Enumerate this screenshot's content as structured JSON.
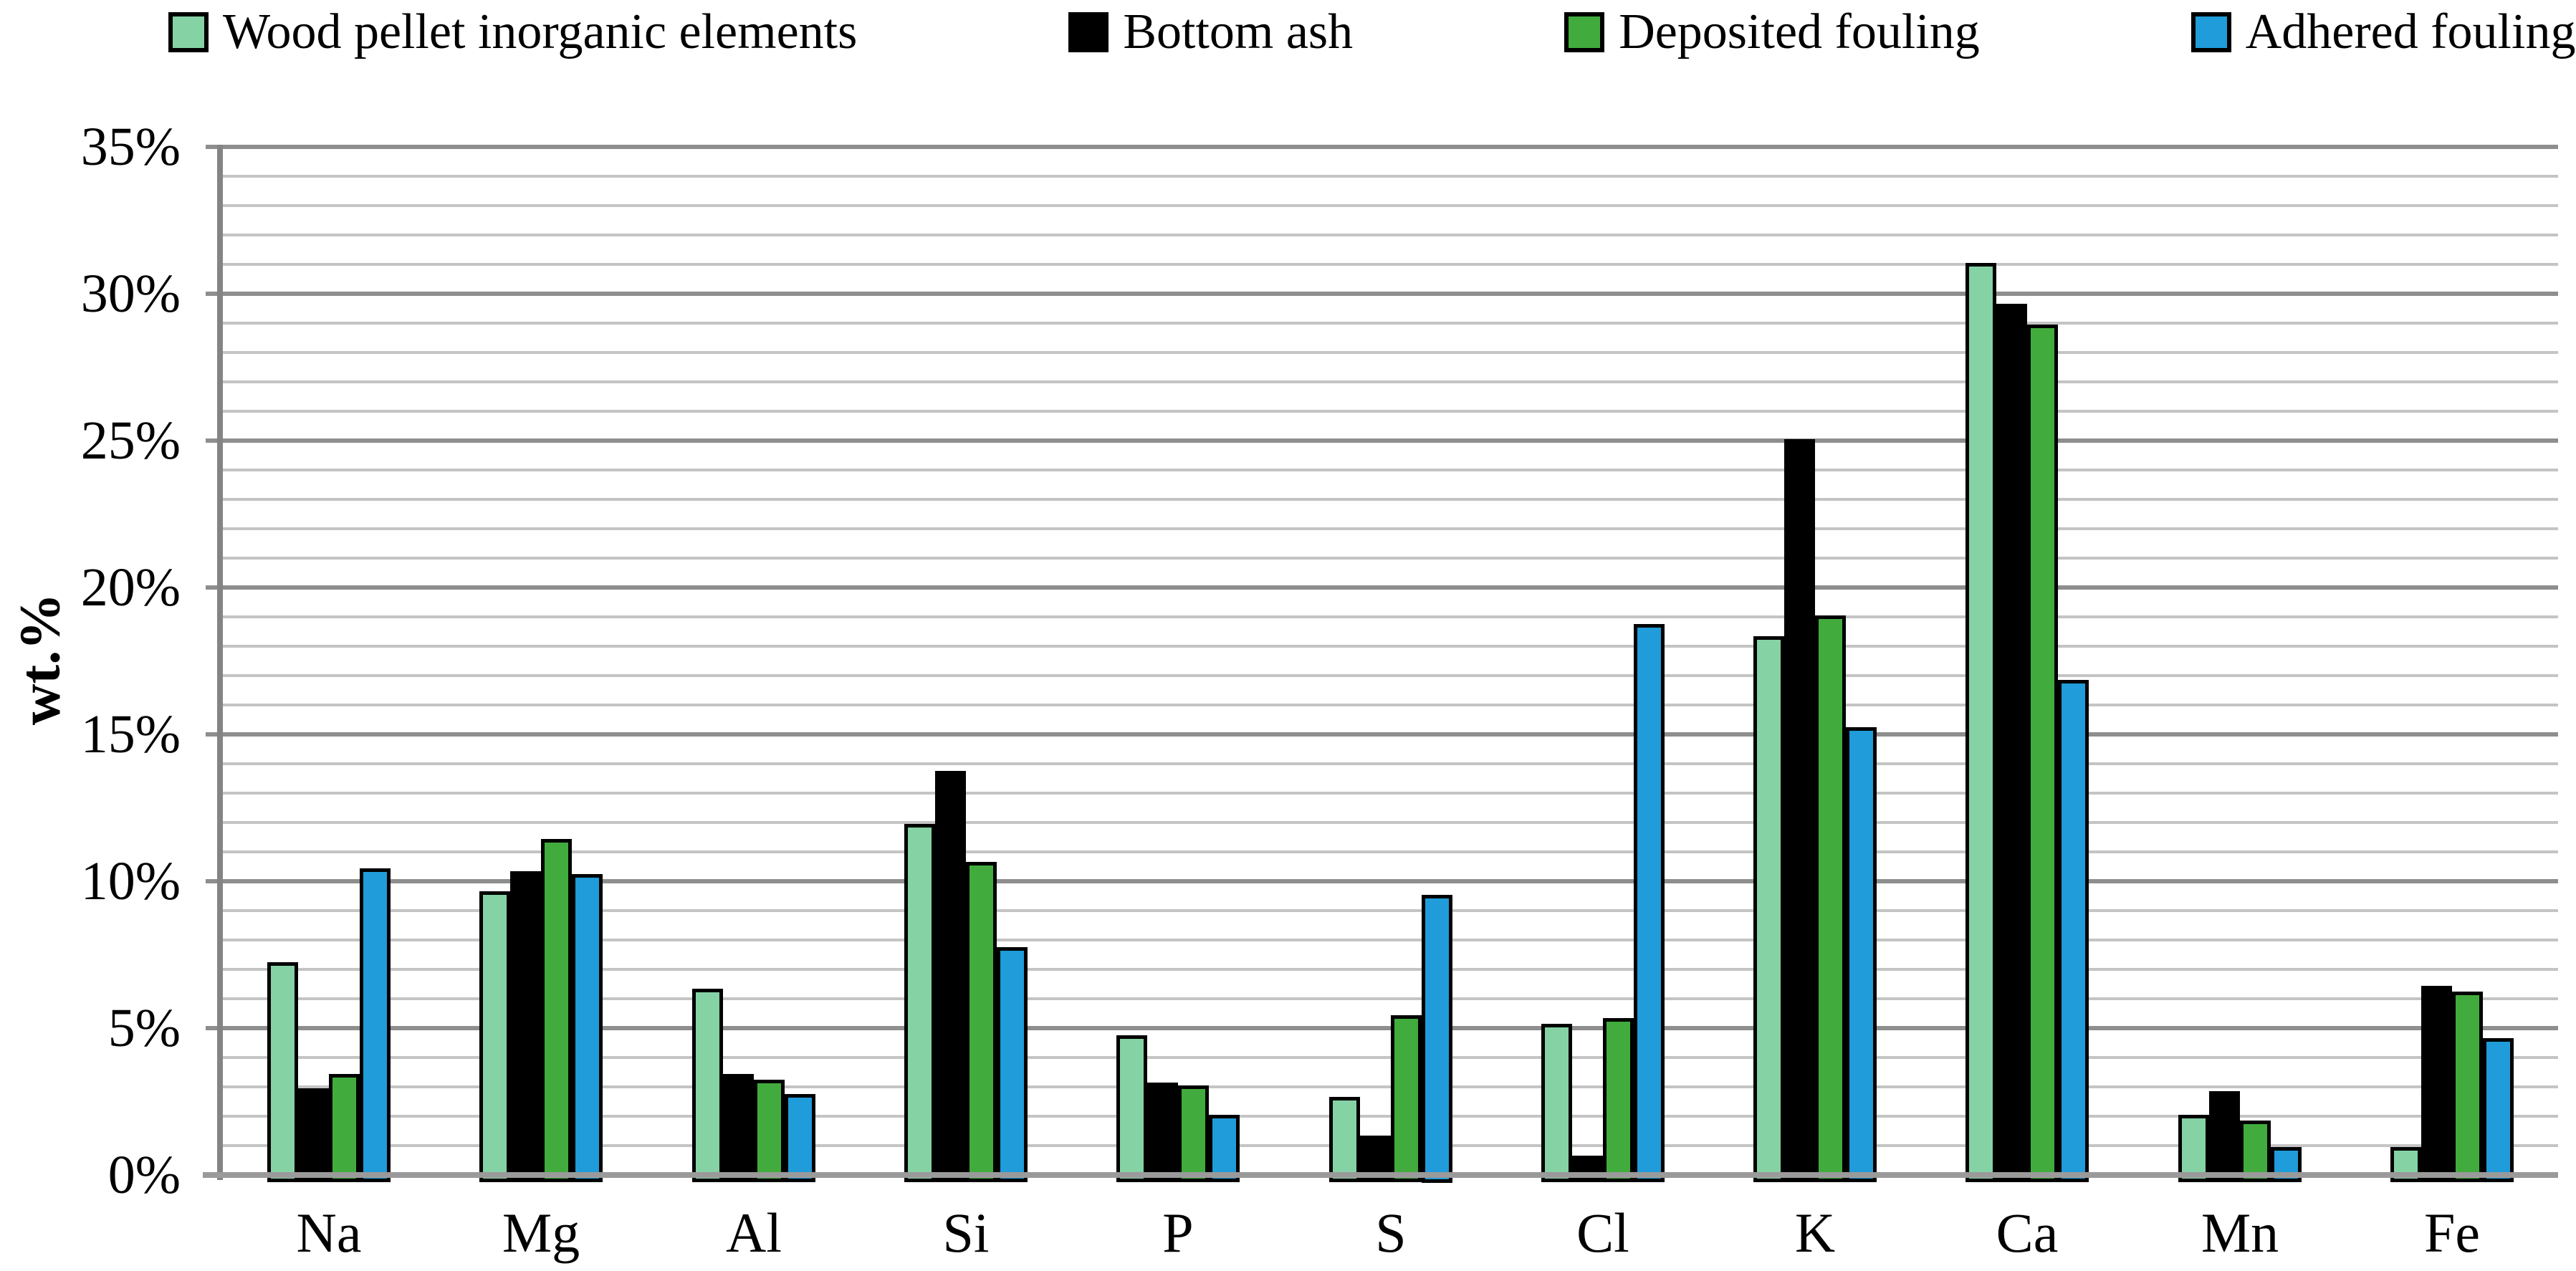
{
  "chart_data": {
    "type": "bar",
    "title": "",
    "xlabel": "",
    "ylabel": "wt.%",
    "ylim": [
      0,
      35
    ],
    "ytick_major_step": 5,
    "ytick_minor_step": 1,
    "ytick_label_suffix": "%",
    "grid": "horizontal, minor every 1%, major every 5%",
    "legend_position": "top",
    "categories": [
      "Na",
      "Mg",
      "Al",
      "Si",
      "P",
      "S",
      "Cl",
      "K",
      "Ca",
      "Mn",
      "Fe"
    ],
    "series": [
      {
        "name": "Wood pellet inorganic elements",
        "color": "#85d2a5",
        "values": [
          7.2,
          9.6,
          6.3,
          11.9,
          4.7,
          2.6,
          5.1,
          18.3,
          31.0,
          2.0,
          0.9
        ]
      },
      {
        "name": "Bottom ash",
        "color": "#000000",
        "values": [
          2.9,
          10.3,
          3.4,
          13.7,
          3.1,
          1.3,
          0.6,
          25.0,
          29.6,
          2.8,
          6.4
        ]
      },
      {
        "name": "Deposited fouling",
        "color": "#41ac3d",
        "values": [
          3.4,
          11.4,
          3.2,
          10.6,
          3.0,
          5.4,
          5.3,
          19.0,
          28.9,
          1.8,
          6.2
        ]
      },
      {
        "name": "Adhered fouling",
        "color": "#1f9cd9",
        "values": [
          10.4,
          10.2,
          2.7,
          7.7,
          2.0,
          9.5,
          18.7,
          15.2,
          16.8,
          0.9,
          4.6
        ]
      }
    ],
    "colors": {
      "minor_gridline": "#c4c4c4",
      "major_gridline": "#8e8e8e",
      "axis_line": "#848484",
      "bar_border": "#000000",
      "text": "#000000",
      "background": "#ffffff"
    }
  }
}
